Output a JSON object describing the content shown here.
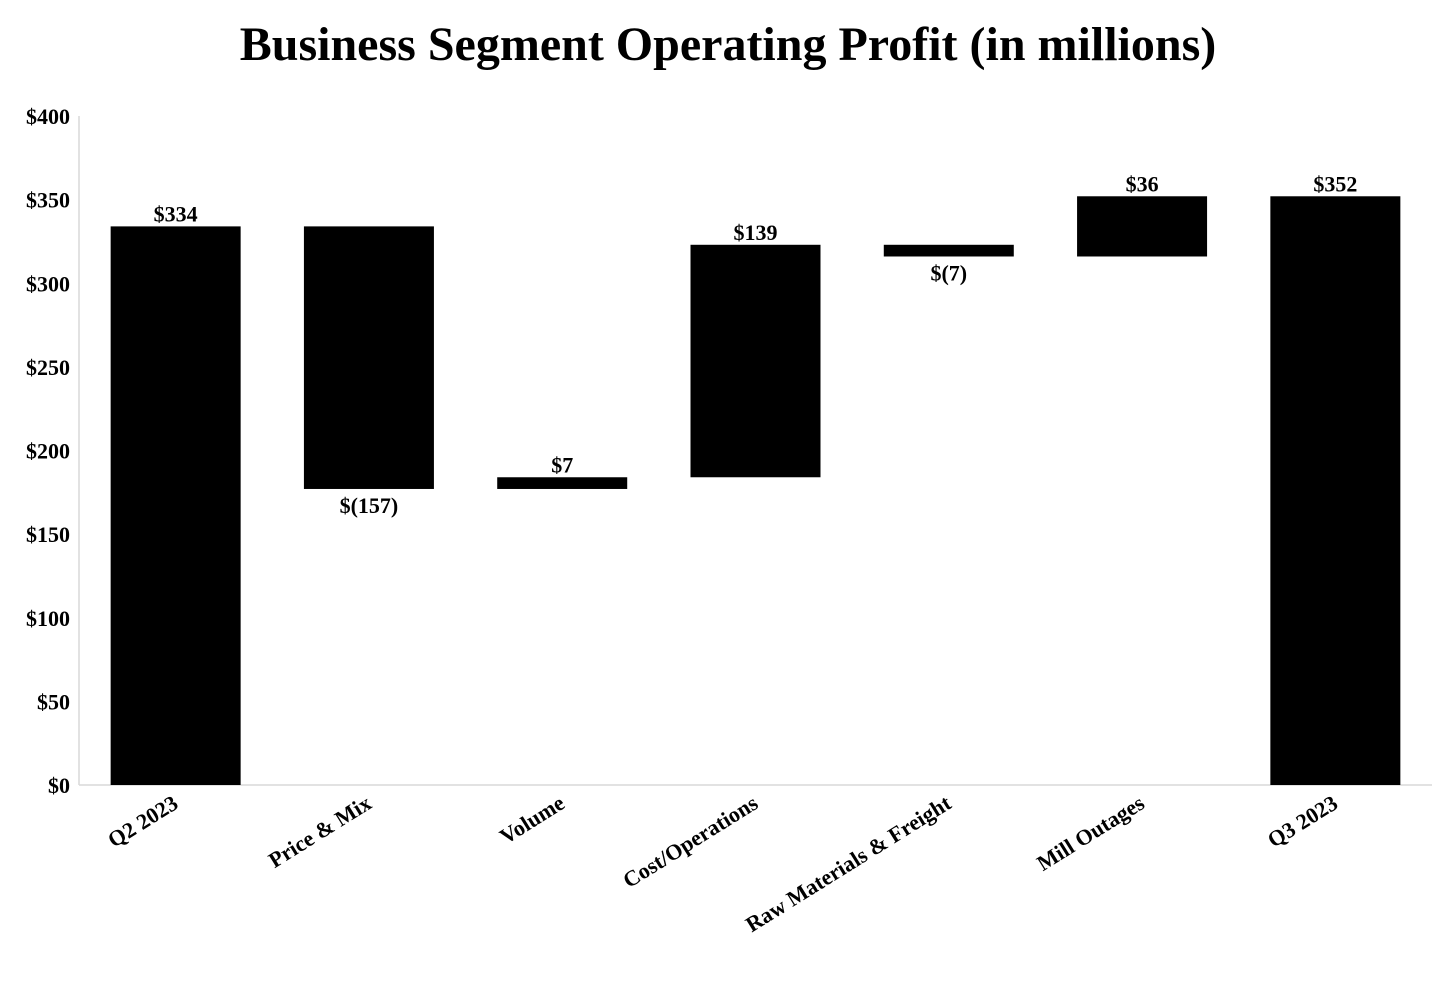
{
  "chart_data": {
    "type": "waterfall",
    "title": "Business Segment Operating Profit (in millions)",
    "xlabel": "",
    "ylabel": "",
    "ylim": [
      0,
      400
    ],
    "yticks": [
      0,
      50,
      100,
      150,
      200,
      250,
      300,
      350,
      400
    ],
    "ytick_labels": [
      "$0",
      "$50",
      "$100",
      "$150",
      "$200",
      "$250",
      "$300",
      "$350",
      "$400"
    ],
    "grid": false,
    "bar_color": "#000000",
    "axis_color": "#d9d9d9",
    "categories": [
      "Q2 2023",
      "Price & Mix",
      "Volume",
      "Cost/Operations",
      "Raw Materials & Freight",
      "Mill Outages",
      "Q3 2023"
    ],
    "values": [
      334,
      -157,
      7,
      139,
      -7,
      36,
      352
    ],
    "kinds": [
      "total",
      "delta",
      "delta",
      "delta",
      "delta",
      "delta",
      "total"
    ],
    "data_labels": [
      "$334",
      "$(157)",
      "$7",
      "$139",
      "$(7)",
      "$36",
      "$352"
    ]
  }
}
